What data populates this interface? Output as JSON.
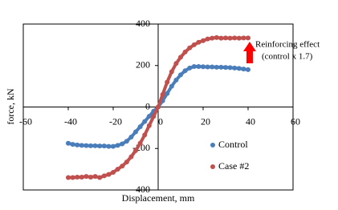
{
  "chart_data": {
    "type": "scatter",
    "x_label": "Displacement,  mm",
    "y_label": "force,  kN",
    "annotations": [
      "Reinforcing effect",
      "(control x 1.7)"
    ],
    "x": [
      -40,
      -38,
      -36,
      -34,
      -32,
      -30,
      -28,
      -26,
      -24,
      -22,
      -20,
      -18,
      -16,
      -14,
      -12,
      -10,
      -8,
      -6,
      -4,
      -2,
      0,
      2,
      4,
      6,
      8,
      10,
      12,
      14,
      16,
      18,
      20,
      22,
      24,
      26,
      28,
      30,
      32,
      34,
      36,
      38,
      40
    ],
    "series": [
      {
        "name": "Control",
        "color": "#4a7ebb",
        "values": [
          -175,
          -180,
          -183,
          -185,
          -186,
          -187,
          -187,
          -188,
          -188,
          -190,
          -190,
          -185,
          -178,
          -165,
          -145,
          -120,
          -95,
          -70,
          -45,
          -20,
          0,
          30,
          65,
          100,
          130,
          155,
          175,
          188,
          195,
          195,
          194,
          193,
          193,
          192,
          192,
          191,
          190,
          188,
          186,
          183,
          180
        ]
      },
      {
        "name": "Case #2",
        "color": "#c0504d",
        "values": [
          -340,
          -340,
          -338,
          -338,
          -335,
          -338,
          -335,
          -340,
          -332,
          -325,
          -315,
          -300,
          -285,
          -265,
          -240,
          -210,
          -175,
          -135,
          -90,
          -45,
          0,
          60,
          120,
          170,
          210,
          240,
          265,
          285,
          300,
          312,
          320,
          328,
          332,
          335,
          332,
          333,
          332,
          333,
          332,
          333,
          333
        ]
      }
    ],
    "xlim": [
      -60,
      60
    ],
    "ylim": [
      -400,
      400
    ],
    "xticks": [
      -60,
      -40,
      -20,
      0,
      20,
      40,
      60
    ],
    "yticks": [
      -400,
      -200,
      0,
      200,
      400
    ]
  }
}
